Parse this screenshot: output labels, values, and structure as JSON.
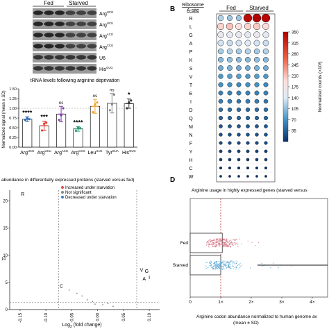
{
  "blots": {
    "group_fed": "Fed",
    "group_starved": "Starved",
    "rows": [
      {
        "base": "Arg",
        "sup": "UCG"
      },
      {
        "base": "Arg",
        "sup": "UCU"
      },
      {
        "base": "Arg",
        "sup": "ACG"
      },
      {
        "base": "Arg",
        "sup": "CCG"
      },
      {
        "base": "U6",
        "sup": ""
      },
      {
        "base": "His",
        "sup": "GUG"
      }
    ]
  },
  "panel_b_label": "B",
  "panel_d_label": "D",
  "chart_data": [
    {
      "type": "bar",
      "title": "tRNA levels following arginine deprivation",
      "ylabel": "Normalized signal (mean ± SD)",
      "ylim": [
        0,
        1.5
      ],
      "yticks": [
        "0.00",
        "0.25",
        "0.50",
        "0.75",
        "1.00",
        "1.25",
        "1.50"
      ],
      "categories": [
        {
          "base": "Arg",
          "sup": "UCG"
        },
        {
          "base": "Arg",
          "sup": "UCU"
        },
        {
          "base": "Arg",
          "sup": "ACG"
        },
        {
          "base": "Arg",
          "sup": "CCG"
        },
        {
          "base": "Leu",
          "sup": "UAG"
        },
        {
          "base": "Tyr",
          "sup": "GUA"
        },
        {
          "base": "His",
          "sup": "GUG"
        }
      ],
      "values": [
        0.72,
        0.55,
        0.85,
        0.47,
        1.05,
        1.13,
        1.12
      ],
      "errors": [
        0.06,
        0.12,
        0.2,
        0.06,
        0.18,
        0.25,
        0.12
      ],
      "significance": [
        "****",
        "***",
        "ns",
        "****",
        "ns",
        "ns",
        "*"
      ],
      "colors": [
        "#2f6db5",
        "#d93b2b",
        "#7b3fa0",
        "#2e9e78",
        "#f0a32c",
        "#8a8a8a",
        "#333333"
      ],
      "points": [
        [
          0.7,
          0.75,
          0.72
        ],
        [
          0.43,
          0.6,
          0.63
        ],
        [
          0.7,
          0.82,
          1.0
        ],
        [
          0.42,
          0.5,
          0.49
        ],
        [
          0.9,
          1.1,
          1.15
        ],
        [
          0.95,
          1.1,
          1.35
        ],
        [
          1.0,
          1.15,
          1.2
        ]
      ]
    },
    {
      "type": "heatmap",
      "row_header": "Ribosome A-site",
      "group_fed": "Fed",
      "group_starved": "Starved",
      "colorbar_label": "Normalized counts (×10³)",
      "colorbar_ticks": [
        "350",
        "315",
        "280",
        "245",
        "210",
        "175",
        "140",
        "105",
        "70",
        "35"
      ],
      "rows": [
        "R",
        "L",
        "G",
        "A",
        "P",
        "K",
        "S",
        "V",
        "T",
        "E",
        "I",
        "D",
        "Q",
        "M",
        "N",
        "F",
        "Y",
        "H",
        "C",
        "W"
      ],
      "columns": 6,
      "values": [
        [
          120,
          110,
          110,
          340,
          350,
          345
        ],
        [
          200,
          210,
          190,
          200,
          205,
          195
        ],
        [
          160,
          150,
          155,
          150,
          160,
          150
        ],
        [
          135,
          130,
          135,
          140,
          135,
          130
        ],
        [
          115,
          120,
          115,
          120,
          115,
          120
        ],
        [
          100,
          105,
          100,
          100,
          105,
          100
        ],
        [
          90,
          95,
          90,
          90,
          95,
          90
        ],
        [
          75,
          80,
          80,
          75,
          80,
          75
        ],
        [
          70,
          70,
          65,
          70,
          70,
          65
        ],
        [
          60,
          60,
          60,
          60,
          60,
          60
        ],
        [
          55,
          55,
          50,
          55,
          55,
          50
        ],
        [
          45,
          45,
          45,
          45,
          45,
          45
        ],
        [
          40,
          40,
          40,
          40,
          40,
          40
        ],
        [
          30,
          30,
          30,
          30,
          30,
          30
        ],
        [
          25,
          25,
          25,
          25,
          25,
          25
        ],
        [
          20,
          20,
          20,
          20,
          20,
          20
        ],
        [
          15,
          15,
          15,
          15,
          15,
          15
        ],
        [
          10,
          10,
          10,
          10,
          10,
          10
        ],
        [
          6,
          6,
          6,
          6,
          6,
          6
        ],
        [
          3,
          3,
          3,
          3,
          3,
          3
        ]
      ]
    },
    {
      "type": "scatter",
      "title": "abundance in differentially expressed proteins (starved versus fed)",
      "xlabel_base": "Log",
      "xlabel_sub": "2",
      "xlabel_rest": " (fold change)",
      "ylabel_fragment": "10",
      "xlim": [
        -0.17,
        0.12
      ],
      "ylim": [
        0,
        22
      ],
      "xticks": [
        "-0.15",
        "-0.10",
        "-0.05",
        "0.00",
        "0.05",
        "0.10"
      ],
      "yticks": [
        "0",
        "5",
        "10",
        "15",
        "20"
      ],
      "legend": [
        {
          "label": "Increased under starvation",
          "color": "#d9534f"
        },
        {
          "label": "Not significant",
          "color": "#888888"
        },
        {
          "label": "Decreased under starvation",
          "color": "#3a7fc1"
        }
      ],
      "points": [
        {
          "x": -0.145,
          "y": 21.0,
          "label": "R"
        },
        {
          "x": 0.085,
          "y": 7.0,
          "label": "V"
        },
        {
          "x": 0.095,
          "y": 6.8,
          "label": "G"
        },
        {
          "x": 0.09,
          "y": 5.4,
          "label": "A"
        },
        {
          "x": 0.1,
          "y": 5.6,
          "label": "I"
        },
        {
          "x": -0.07,
          "y": 4.0,
          "label": "C"
        },
        {
          "x": -0.055,
          "y": 3.6,
          "label": ""
        },
        {
          "x": -0.04,
          "y": 3.0,
          "label": ""
        },
        {
          "x": -0.03,
          "y": 2.5,
          "label": ""
        },
        {
          "x": -0.02,
          "y": 1.8,
          "label": ""
        },
        {
          "x": -0.01,
          "y": 1.5,
          "label": ""
        },
        {
          "x": -0.005,
          "y": 1.0,
          "label": ""
        },
        {
          "x": 0.01,
          "y": 0.9,
          "label": ""
        },
        {
          "x": 0.02,
          "y": 1.1,
          "label": ""
        },
        {
          "x": 0.03,
          "y": 0.6,
          "label": ""
        }
      ]
    },
    {
      "type": "scatter",
      "title": "Arginine usage in highly expressed genes (starved versus",
      "xlabel": "Arginine codon abundance normalized to human genome average (mean ± SD)",
      "xlim": [
        0,
        4.5
      ],
      "xticks": [
        "0",
        "1×",
        "2×",
        "3×",
        "4×"
      ],
      "categories": [
        "Fed",
        "Starved"
      ],
      "means": [
        1.05,
        1.0
      ],
      "colors": [
        "#d46a7a",
        "#4fa3d1"
      ]
    }
  ]
}
